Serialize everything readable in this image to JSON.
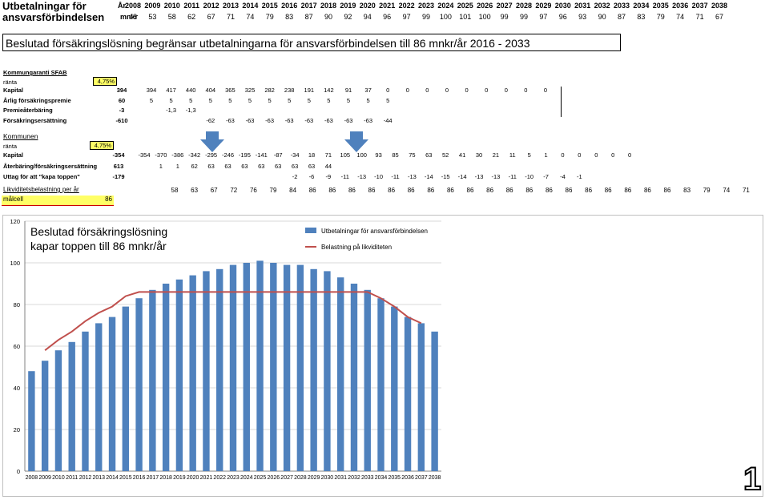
{
  "header": {
    "title_line1": "Utbetalningar för",
    "title_line2": "ansvarsförbindelsen",
    "years_label": "År",
    "mnkr_label": "mnkr",
    "years": [
      "2008",
      "2009",
      "2010",
      "2011",
      "2012",
      "2013",
      "2014",
      "2015",
      "2016",
      "2017",
      "2018",
      "2019",
      "2020",
      "2021",
      "2022",
      "2023",
      "2024",
      "2025",
      "2026",
      "2027",
      "2028",
      "2029",
      "2030",
      "2031",
      "2032",
      "2033",
      "2034",
      "2035",
      "2036",
      "2037",
      "2038"
    ],
    "mnkr": [
      "48",
      "53",
      "58",
      "62",
      "67",
      "71",
      "74",
      "79",
      "83",
      "87",
      "90",
      "92",
      "94",
      "96",
      "97",
      "99",
      "100",
      "101",
      "100",
      "99",
      "99",
      "97",
      "96",
      "93",
      "90",
      "87",
      "83",
      "79",
      "74",
      "71",
      "67"
    ]
  },
  "banner": "Beslutad försäkringslösning begränsar utbetalningarna för ansvarsförbindelsen till 86 mnkr/år 2016 - 2033",
  "sfab": {
    "heading": "Kommungaranti SFAB",
    "rate_label": "ränta",
    "rate": "4,75%",
    "rows": [
      {
        "label": "Kapital",
        "first": "394",
        "values": [
          "394",
          "417",
          "440",
          "404",
          "365",
          "325",
          "282",
          "238",
          "191",
          "142",
          "91",
          "37",
          "0",
          "0",
          "0",
          "0",
          "0",
          "0",
          "0",
          "0",
          "0"
        ]
      },
      {
        "label": "Årlig försäkringspremie",
        "first": "60",
        "values": [
          "5",
          "5",
          "5",
          "5",
          "5",
          "5",
          "5",
          "5",
          "5",
          "5",
          "5",
          "5",
          "5"
        ]
      },
      {
        "label": "Premieåterbäring",
        "first": "-3",
        "values": [
          "",
          "-1,3",
          "-1,3"
        ]
      },
      {
        "label": "Försäkringsersättning",
        "first": "-610",
        "values": [
          "",
          "",
          "",
          "-62",
          "-63",
          "-63",
          "-63",
          "-63",
          "-63",
          "-63",
          "-63",
          "-63",
          "-44"
        ]
      }
    ]
  },
  "kommunen": {
    "heading": "Kommunen",
    "rate_label": "ränta",
    "rate": "4,75%",
    "rows": [
      {
        "label": "Kapital",
        "first": "-354",
        "values": [
          "-354",
          "-370",
          "-386",
          "-342",
          "-295",
          "-246",
          "-195",
          "-141",
          "-87",
          "-34",
          "18",
          "71",
          "105",
          "100",
          "93",
          "85",
          "75",
          "63",
          "52",
          "41",
          "30",
          "21",
          "11",
          "5",
          "1",
          "0",
          "0",
          "0",
          "0",
          "0"
        ]
      },
      {
        "label": "Återbäring/försäkringsersättning",
        "first": "613",
        "values": [
          "",
          "1",
          "1",
          "62",
          "63",
          "63",
          "63",
          "63",
          "63",
          "63",
          "63",
          "44"
        ]
      },
      {
        "label": "Uttag för att \"kapa toppen\"",
        "first": "-179",
        "values": [
          "",
          "",
          "",
          "",
          "",
          "",
          "",
          "",
          "",
          "-2",
          "-6",
          "-9",
          "-11",
          "-13",
          "-10",
          "-11",
          "-13",
          "-14",
          "-15",
          "-14",
          "-13",
          "-13",
          "-11",
          "-10",
          "-7",
          "-4",
          "-1"
        ]
      }
    ]
  },
  "likviditet": {
    "label": "Likviditetsbelastning per år",
    "values": [
      "58",
      "63",
      "67",
      "72",
      "76",
      "79",
      "84",
      "86",
      "86",
      "86",
      "86",
      "86",
      "86",
      "86",
      "86",
      "86",
      "86",
      "86",
      "86",
      "86",
      "86",
      "86",
      "86",
      "86",
      "86",
      "86",
      "83",
      "79",
      "74",
      "71"
    ],
    "malcell_label": "målcell",
    "malcell_value": "86"
  },
  "chart_data": {
    "type": "bar",
    "annotation_line1": "Beslutad försäkringslösning",
    "annotation_line2": "kapar toppen till 86 mnkr/år",
    "categories": [
      "2008",
      "2009",
      "2010",
      "2011",
      "2012",
      "2013",
      "2014",
      "2015",
      "2016",
      "2017",
      "2018",
      "2019",
      "2020",
      "2021",
      "2022",
      "2023",
      "2024",
      "2025",
      "2026",
      "2027",
      "2028",
      "2029",
      "2030",
      "2031",
      "2032",
      "2033",
      "2034",
      "2035",
      "2036",
      "2037",
      "2038"
    ],
    "ylim": [
      0,
      120
    ],
    "yticks": [
      "0",
      "20",
      "40",
      "60",
      "80",
      "100",
      "120"
    ],
    "grid": true,
    "legend_position": "top-right",
    "series": [
      {
        "name": "Utbetalningar för ansvarsförbindelsen",
        "type": "bar",
        "color": "#4f81bd",
        "values": [
          48,
          53,
          58,
          62,
          67,
          71,
          74,
          79,
          83,
          87,
          90,
          92,
          94,
          96,
          97,
          99,
          100,
          101,
          100,
          99,
          99,
          97,
          96,
          93,
          90,
          87,
          83,
          79,
          74,
          71,
          67
        ]
      },
      {
        "name": "Belastning på likviditeten",
        "type": "line",
        "color": "#c0504d",
        "values": [
          null,
          58,
          63,
          67,
          72,
          76,
          79,
          84,
          86,
          86,
          86,
          86,
          86,
          86,
          86,
          86,
          86,
          86,
          86,
          86,
          86,
          86,
          86,
          86,
          86,
          86,
          83,
          79,
          74,
          71,
          null
        ]
      }
    ]
  },
  "corner_mark": "1"
}
